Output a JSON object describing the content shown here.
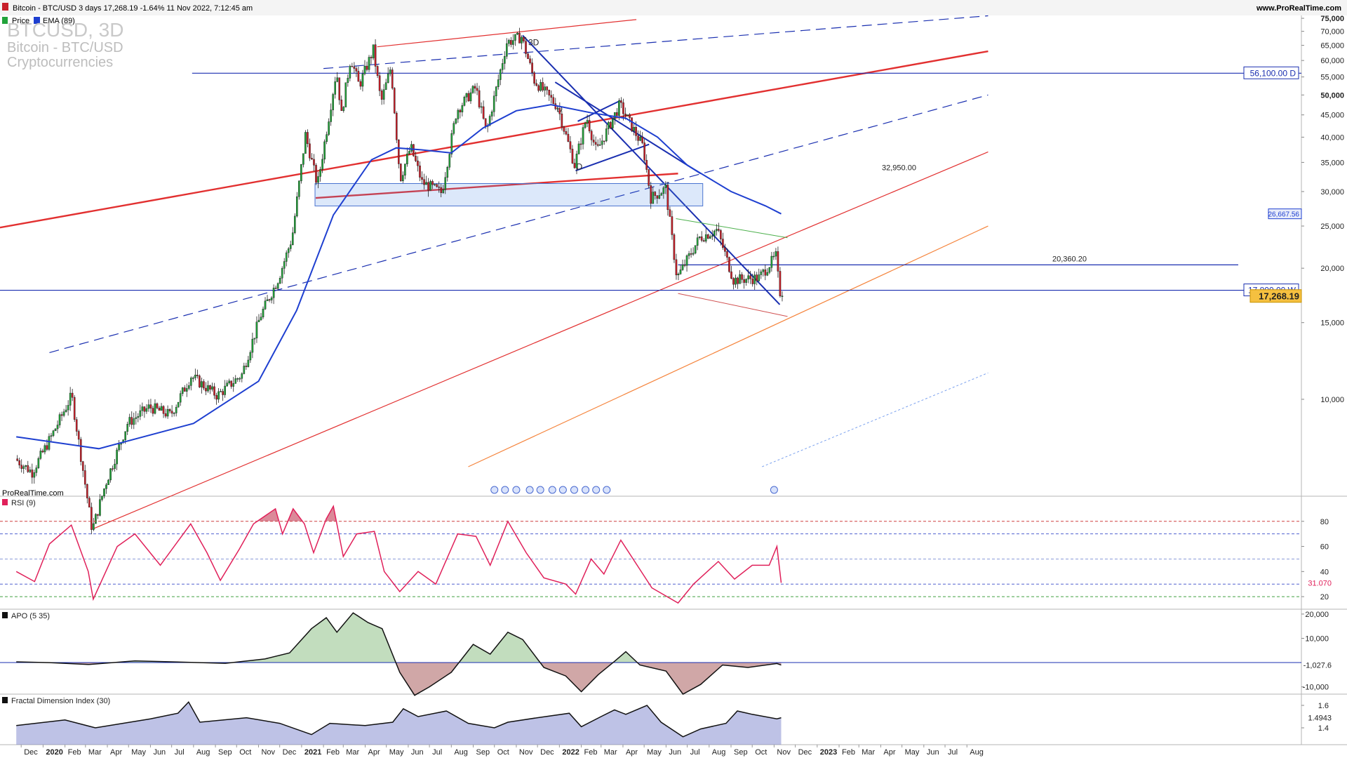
{
  "header": {
    "title_line": "Bitcoin - BTC/USD 3 days 17,268.19 -1.64% 11 Nov 2022, 7:12:45 am",
    "site": "www.ProRealTime.com",
    "legend_price": "Price",
    "legend_ema": "EMA (89)"
  },
  "watermark": {
    "symbol": "BTCUSD, 3D",
    "name": "Bitcoin - BTC/USD",
    "category": "Cryptocurrencies"
  },
  "footer_brand": "ProRealTime.com",
  "colors": {
    "bull": "#22a33a",
    "bear": "#c8202a",
    "ema": "#1e3fd0",
    "level": "#1a2fb0",
    "rsi": "#e0205a",
    "channel_red": "#e23030",
    "channel_orange": "#f5843c"
  },
  "chart_data": [
    {
      "type": "candlestick",
      "panel": "price",
      "ylim": [
        0,
        76000
      ],
      "y_ticks": [
        "75,000",
        "70,000",
        "65,000",
        "60,000",
        "55,000",
        "50,000",
        "45,000",
        "40,000",
        "35,000",
        "30,000",
        "25,000",
        "20,000",
        "15,000",
        "10,000"
      ],
      "x_ticks": [
        "Dec",
        "2020",
        "Feb",
        "Mar",
        "Apr",
        "May",
        "Jun",
        "Jul",
        "Aug",
        "Sep",
        "Oct",
        "Nov",
        "Dec",
        "2021",
        "Feb",
        "Mar",
        "Apr",
        "May",
        "Jun",
        "Jul",
        "Aug",
        "Sep",
        "Oct",
        "Nov",
        "Dec",
        "2022",
        "Feb",
        "Mar",
        "Apr",
        "May",
        "Jun",
        "Jul",
        "Aug",
        "Sep",
        "Oct",
        "Nov",
        "Dec",
        "2023",
        "Feb",
        "Mar",
        "Apr",
        "May",
        "Jun",
        "Jul",
        "Aug"
      ],
      "price_path": [
        [
          "2019-11-24",
          7300
        ],
        [
          "2019-12-18",
          6800
        ],
        [
          "2020-01-14",
          8200
        ],
        [
          "2020-02-12",
          10200
        ],
        [
          "2020-03-12",
          5000
        ],
        [
          "2020-03-31",
          6400
        ],
        [
          "2020-05-01",
          8800
        ],
        [
          "2020-06-01",
          9600
        ],
        [
          "2020-07-01",
          9200
        ],
        [
          "2020-07-30",
          11300
        ],
        [
          "2020-09-05",
          10200
        ],
        [
          "2020-10-10",
          11400
        ],
        [
          "2020-11-05",
          15500
        ],
        [
          "2020-12-01",
          19000
        ],
        [
          "2020-12-20",
          23500
        ],
        [
          "2021-01-08",
          40500
        ],
        [
          "2021-01-25",
          31000
        ],
        [
          "2021-02-21",
          57000
        ],
        [
          "2021-02-28",
          45000
        ],
        [
          "2021-03-13",
          61000
        ],
        [
          "2021-03-25",
          52500
        ],
        [
          "2021-04-14",
          63500
        ],
        [
          "2021-04-25",
          48000
        ],
        [
          "2021-05-09",
          58000
        ],
        [
          "2021-05-22",
          32000
        ],
        [
          "2021-06-06",
          38000
        ],
        [
          "2021-06-22",
          31500
        ],
        [
          "2021-07-20",
          29800
        ],
        [
          "2021-08-10",
          46000
        ],
        [
          "2021-09-06",
          52000
        ],
        [
          "2021-09-21",
          41000
        ],
        [
          "2021-10-20",
          66000
        ],
        [
          "2021-11-10",
          68000
        ],
        [
          "2021-11-28",
          54000
        ],
        [
          "2021-12-31",
          47000
        ],
        [
          "2022-01-24",
          34500
        ],
        [
          "2022-02-10",
          44500
        ],
        [
          "2022-02-24",
          37000
        ],
        [
          "2022-03-29",
          47500
        ],
        [
          "2022-05-01",
          38000
        ],
        [
          "2022-05-12",
          29000
        ],
        [
          "2022-06-02",
          30500
        ],
        [
          "2022-06-18",
          19000
        ],
        [
          "2022-07-20",
          23500
        ],
        [
          "2022-08-14",
          24500
        ],
        [
          "2022-09-06",
          18800
        ],
        [
          "2022-10-12",
          19000
        ],
        [
          "2022-11-05",
          21300
        ],
        [
          "2022-11-11",
          17268
        ]
      ],
      "ema_path": [
        [
          "2019-11-24",
          8200
        ],
        [
          "2020-03-20",
          7700
        ],
        [
          "2020-08-01",
          8800
        ],
        [
          "2020-11-01",
          11000
        ],
        [
          "2020-12-25",
          16000
        ],
        [
          "2021-02-15",
          26500
        ],
        [
          "2021-04-10",
          35500
        ],
        [
          "2021-05-15",
          37800
        ],
        [
          "2021-06-20",
          37400
        ],
        [
          "2021-08-01",
          36800
        ],
        [
          "2021-09-15",
          42000
        ],
        [
          "2021-11-01",
          46000
        ],
        [
          "2021-12-20",
          47500
        ],
        [
          "2022-02-15",
          45500
        ],
        [
          "2022-04-05",
          44200
        ],
        [
          "2022-05-20",
          40000
        ],
        [
          "2022-07-01",
          34500
        ],
        [
          "2022-09-01",
          30000
        ],
        [
          "2022-10-20",
          27800
        ],
        [
          "2022-11-11",
          26667
        ]
      ],
      "levels": [
        {
          "label": "56,100.00 D",
          "value": 56100
        },
        {
          "label": "17,800.00 W",
          "value": 17800
        },
        {
          "label": "20,360.20",
          "value": 20360
        },
        {
          "label": "32,950.00",
          "value": 32950
        }
      ],
      "tag_ema": "26,667.56",
      "tag_price": "17,268.19",
      "annotations": [
        "3D",
        "D",
        "D"
      ]
    },
    {
      "type": "line",
      "panel": "RSI",
      "title": "RSI (9)",
      "ylim": [
        10,
        100
      ],
      "y_ticks": [
        "80",
        "60",
        "40",
        "20"
      ],
      "guides": [
        80,
        70,
        50,
        30,
        20
      ],
      "current_label": "31.070",
      "path": [
        [
          "2019-11-24",
          40
        ],
        [
          "2019-12-20",
          32
        ],
        [
          "2020-01-10",
          62
        ],
        [
          "2020-02-10",
          77
        ],
        [
          "2020-03-05",
          40
        ],
        [
          "2020-03-12",
          18
        ],
        [
          "2020-04-15",
          60
        ],
        [
          "2020-05-10",
          70
        ],
        [
          "2020-06-15",
          45
        ],
        [
          "2020-07-28",
          78
        ],
        [
          "2020-08-20",
          55
        ],
        [
          "2020-09-08",
          33
        ],
        [
          "2020-10-05",
          58
        ],
        [
          "2020-10-25",
          78
        ],
        [
          "2020-11-25",
          90
        ],
        [
          "2020-12-05",
          70
        ],
        [
          "2020-12-20",
          90
        ],
        [
          "2021-01-05",
          78
        ],
        [
          "2021-01-18",
          55
        ],
        [
          "2021-02-05",
          82
        ],
        [
          "2021-02-15",
          92
        ],
        [
          "2021-03-01",
          52
        ],
        [
          "2021-03-20",
          70
        ],
        [
          "2021-04-14",
          72
        ],
        [
          "2021-04-28",
          40
        ],
        [
          "2021-05-20",
          24
        ],
        [
          "2021-06-15",
          40
        ],
        [
          "2021-07-10",
          30
        ],
        [
          "2021-08-10",
          70
        ],
        [
          "2021-09-05",
          68
        ],
        [
          "2021-09-25",
          45
        ],
        [
          "2021-10-20",
          80
        ],
        [
          "2021-11-15",
          55
        ],
        [
          "2021-12-10",
          35
        ],
        [
          "2022-01-10",
          30
        ],
        [
          "2022-01-24",
          22
        ],
        [
          "2022-02-15",
          50
        ],
        [
          "2022-03-05",
          38
        ],
        [
          "2022-03-29",
          65
        ],
        [
          "2022-05-12",
          27
        ],
        [
          "2022-06-18",
          15
        ],
        [
          "2022-07-10",
          30
        ],
        [
          "2022-08-14",
          48
        ],
        [
          "2022-09-06",
          34
        ],
        [
          "2022-10-01",
          45
        ],
        [
          "2022-10-25",
          45
        ],
        [
          "2022-11-05",
          60
        ],
        [
          "2022-11-11",
          31
        ]
      ]
    },
    {
      "type": "area",
      "panel": "APO",
      "title": "APO (5 35)",
      "ylim": [
        -13000,
        22000
      ],
      "y_ticks": [
        "20,000",
        "10,000",
        "-10,000"
      ],
      "current_label": "-1,027.6",
      "path": [
        [
          "2019-11-24",
          300
        ],
        [
          "2020-01-10",
          0
        ],
        [
          "2020-03-05",
          -800
        ],
        [
          "2020-05-10",
          700
        ],
        [
          "2020-07-15",
          200
        ],
        [
          "2020-09-15",
          -300
        ],
        [
          "2020-11-10",
          1500
        ],
        [
          "2020-12-15",
          4000
        ],
        [
          "2021-01-15",
          14000
        ],
        [
          "2021-02-05",
          18500
        ],
        [
          "2021-02-20",
          12500
        ],
        [
          "2021-03-15",
          20500
        ],
        [
          "2021-04-05",
          16500
        ],
        [
          "2021-04-25",
          14000
        ],
        [
          "2021-05-20",
          -4000
        ],
        [
          "2021-06-10",
          -13500
        ],
        [
          "2021-07-01",
          -10000
        ],
        [
          "2021-08-01",
          -4000
        ],
        [
          "2021-09-01",
          7500
        ],
        [
          "2021-09-25",
          3500
        ],
        [
          "2021-10-20",
          12500
        ],
        [
          "2021-11-10",
          9500
        ],
        [
          "2021-12-10",
          -2000
        ],
        [
          "2022-01-10",
          -5500
        ],
        [
          "2022-02-01",
          -12000
        ],
        [
          "2022-02-25",
          -5000
        ],
        [
          "2022-03-20",
          500
        ],
        [
          "2022-04-05",
          4500
        ],
        [
          "2022-04-25",
          -1000
        ],
        [
          "2022-06-01",
          -3500
        ],
        [
          "2022-06-25",
          -13000
        ],
        [
          "2022-07-20",
          -9000
        ],
        [
          "2022-08-20",
          -1000
        ],
        [
          "2022-09-25",
          -2000
        ],
        [
          "2022-11-05",
          -400
        ],
        [
          "2022-11-11",
          -1028
        ]
      ]
    },
    {
      "type": "area",
      "panel": "FDI",
      "title": "Fractal Dimension Index (30)",
      "ylim": [
        1.25,
        1.7
      ],
      "y_ticks": [
        "1.6",
        "1.4"
      ],
      "current_label": "1.4943",
      "path": [
        [
          "2019-11-24",
          1.42
        ],
        [
          "2020-02-01",
          1.47
        ],
        [
          "2020-03-15",
          1.4
        ],
        [
          "2020-06-01",
          1.48
        ],
        [
          "2020-07-10",
          1.53
        ],
        [
          "2020-07-25",
          1.63
        ],
        [
          "2020-08-10",
          1.45
        ],
        [
          "2020-10-15",
          1.49
        ],
        [
          "2020-12-01",
          1.44
        ],
        [
          "2021-01-15",
          1.34
        ],
        [
          "2021-02-10",
          1.44
        ],
        [
          "2021-04-01",
          1.42
        ],
        [
          "2021-05-10",
          1.45
        ],
        [
          "2021-05-25",
          1.57
        ],
        [
          "2021-06-15",
          1.5
        ],
        [
          "2021-07-25",
          1.55
        ],
        [
          "2021-08-25",
          1.44
        ],
        [
          "2021-10-01",
          1.4
        ],
        [
          "2021-10-20",
          1.45
        ],
        [
          "2021-12-01",
          1.49
        ],
        [
          "2022-01-15",
          1.53
        ],
        [
          "2022-02-01",
          1.41
        ],
        [
          "2022-03-01",
          1.5
        ],
        [
          "2022-03-20",
          1.56
        ],
        [
          "2022-04-05",
          1.52
        ],
        [
          "2022-05-05",
          1.6
        ],
        [
          "2022-05-25",
          1.45
        ],
        [
          "2022-06-25",
          1.32
        ],
        [
          "2022-07-20",
          1.39
        ],
        [
          "2022-08-25",
          1.44
        ],
        [
          "2022-09-10",
          1.55
        ],
        [
          "2022-10-01",
          1.52
        ],
        [
          "2022-11-05",
          1.48
        ],
        [
          "2022-11-11",
          1.49
        ]
      ]
    }
  ]
}
